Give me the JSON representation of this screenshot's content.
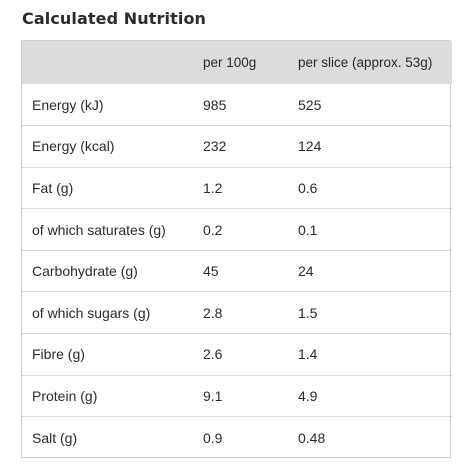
{
  "title": "Calculated Nutrition",
  "table": {
    "headers": [
      "",
      "per 100g",
      "per slice (approx. 53g)"
    ],
    "rows": [
      {
        "label": "Energy (kJ)",
        "per_100g": "985",
        "per_slice": "525"
      },
      {
        "label": "Energy (kcal)",
        "per_100g": "232",
        "per_slice": "124"
      },
      {
        "label": "Fat (g)",
        "per_100g": "1.2",
        "per_slice": "0.6"
      },
      {
        "label": "of which saturates (g)",
        "per_100g": "0.2",
        "per_slice": "0.1"
      },
      {
        "label": "Carbohydrate (g)",
        "per_100g": "45",
        "per_slice": "24"
      },
      {
        "label": "of which sugars (g)",
        "per_100g": "2.8",
        "per_slice": "1.5"
      },
      {
        "label": "Fibre (g)",
        "per_100g": "2.6",
        "per_slice": "1.4"
      },
      {
        "label": "Protein (g)",
        "per_100g": "9.1",
        "per_slice": "4.9"
      },
      {
        "label": "Salt (g)",
        "per_100g": "0.9",
        "per_slice": "0.48"
      }
    ]
  }
}
